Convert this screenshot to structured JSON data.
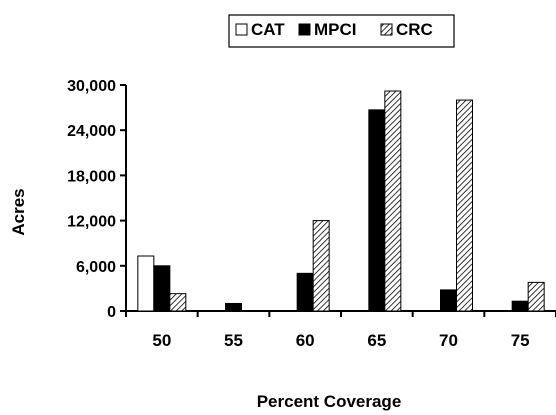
{
  "chart_data": {
    "type": "bar",
    "title": "",
    "xlabel": "Percent Coverage",
    "ylabel": "Acres",
    "categories": [
      "50",
      "55",
      "60",
      "65",
      "70",
      "75"
    ],
    "y_ticks": [
      "0",
      "6,000",
      "12,000",
      "18,000",
      "24,000",
      "30,000"
    ],
    "y_tick_values": [
      0,
      6000,
      12000,
      18000,
      24000,
      30000
    ],
    "ylim": [
      0,
      30000
    ],
    "grid": false,
    "legend_position": "top",
    "series": [
      {
        "name": "CAT",
        "values": [
          7300,
          0,
          0,
          0,
          0,
          0
        ],
        "fill": "#ffffff",
        "pattern": "none"
      },
      {
        "name": "MPCI",
        "values": [
          6000,
          1000,
          5000,
          26700,
          2800,
          1300
        ],
        "fill": "#000000",
        "pattern": "none"
      },
      {
        "name": "CRC",
        "values": [
          2300,
          0,
          12000,
          29200,
          28000,
          3800
        ],
        "fill": "#ffffff",
        "pattern": "diagonal-hatch"
      }
    ]
  }
}
